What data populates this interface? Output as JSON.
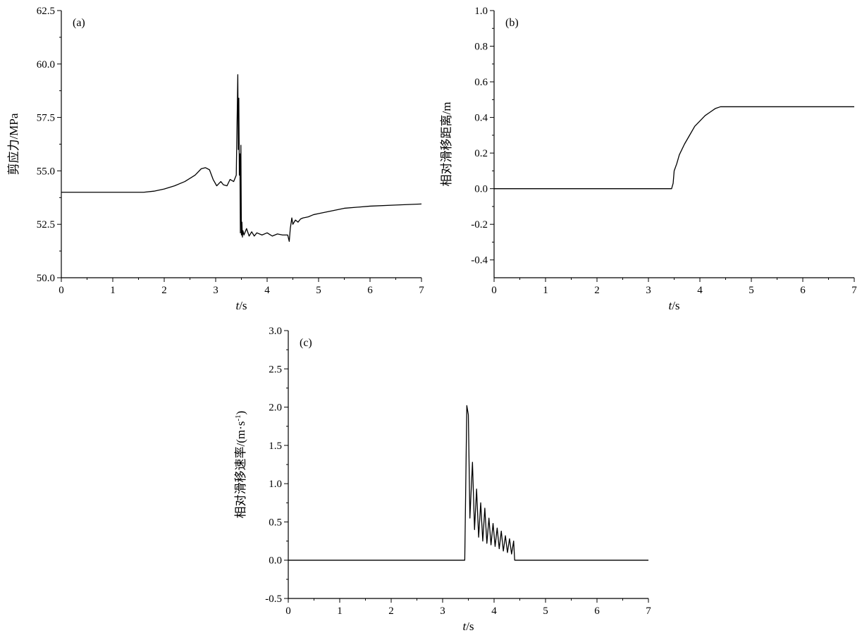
{
  "chart_data": [
    {
      "panel": "(a)",
      "type": "line",
      "xlabel_italic": "t",
      "xlabel_unit": "/s",
      "ylabel": "剪应力/MPa",
      "xlim": [
        0,
        7
      ],
      "ylim": [
        50.0,
        62.5
      ],
      "xticks": [
        "0",
        "1",
        "2",
        "3",
        "4",
        "5",
        "6",
        "7"
      ],
      "yticks": [
        "50.0",
        "52.5",
        "55.0",
        "57.5",
        "60.0",
        "62.5"
      ],
      "series": [
        {
          "x": [
            0,
            1.6,
            1.8,
            2.0,
            2.2,
            2.4,
            2.6,
            2.72,
            2.8,
            2.88,
            2.95,
            3.02,
            3.1,
            3.15,
            3.22,
            3.28,
            3.35,
            3.4,
            3.43,
            3.44,
            3.45,
            3.46,
            3.47,
            3.48,
            3.49,
            3.5,
            3.51,
            3.52,
            3.53,
            3.55,
            3.6,
            3.65,
            3.7,
            3.75,
            3.8,
            3.9,
            4.0,
            4.1,
            4.2,
            4.3,
            4.4,
            4.43,
            4.45,
            4.48,
            4.5,
            4.55,
            4.6,
            4.65,
            4.7,
            4.8,
            4.9,
            5.0,
            5.2,
            5.5,
            6.0,
            6.5,
            7.0
          ],
          "y": [
            54.0,
            54.0,
            54.05,
            54.15,
            54.3,
            54.5,
            54.8,
            55.1,
            55.15,
            55.05,
            54.6,
            54.3,
            54.5,
            54.35,
            54.3,
            54.6,
            54.5,
            54.8,
            59.5,
            56.0,
            58.4,
            54.8,
            55.8,
            52.1,
            56.2,
            52.0,
            52.6,
            51.9,
            52.2,
            52.0,
            52.3,
            51.95,
            52.15,
            51.95,
            52.1,
            52.0,
            52.1,
            51.95,
            52.05,
            52.0,
            52.0,
            51.7,
            52.3,
            52.8,
            52.5,
            52.7,
            52.6,
            52.75,
            52.8,
            52.85,
            52.95,
            53.0,
            53.1,
            53.25,
            53.35,
            53.4,
            53.45
          ]
        }
      ]
    },
    {
      "panel": "(b)",
      "type": "line",
      "xlabel_italic": "t",
      "xlabel_unit": "/s",
      "ylabel": "相对滑移距离/m",
      "xlim": [
        0,
        7
      ],
      "ylim": [
        -0.5,
        1.0
      ],
      "xticks": [
        "0",
        "1",
        "2",
        "3",
        "4",
        "5",
        "6",
        "7"
      ],
      "yticks": [
        "-0.4",
        "-0.2",
        "0.0",
        "0.2",
        "0.4",
        "0.6",
        "0.8",
        "1.0"
      ],
      "series": [
        {
          "x": [
            0,
            3.45,
            3.48,
            3.5,
            3.55,
            3.6,
            3.7,
            3.8,
            3.9,
            4.0,
            4.1,
            4.2,
            4.3,
            4.4,
            7.0
          ],
          "y": [
            0.0,
            0.0,
            0.03,
            0.1,
            0.14,
            0.19,
            0.25,
            0.3,
            0.35,
            0.38,
            0.41,
            0.43,
            0.45,
            0.46,
            0.46
          ]
        }
      ]
    },
    {
      "panel": "(c)",
      "type": "line",
      "xlabel_italic": "t",
      "xlabel_unit": "/s",
      "ylabel": "相对滑移速率/(m·s",
      "ylabel_sup": "-1",
      "ylabel_end": ")",
      "xlim": [
        0,
        7
      ],
      "ylim": [
        -0.5,
        3.0
      ],
      "xticks": [
        "0",
        "1",
        "2",
        "3",
        "4",
        "5",
        "6",
        "7"
      ],
      "yticks": [
        "-0.5",
        "0.0",
        "0.5",
        "1.0",
        "1.5",
        "2.0",
        "2.5",
        "3.0"
      ],
      "series": [
        {
          "x": [
            0,
            3.43,
            3.47,
            3.5,
            3.53,
            3.58,
            3.62,
            3.66,
            3.7,
            3.74,
            3.78,
            3.82,
            3.86,
            3.9,
            3.94,
            3.98,
            4.02,
            4.06,
            4.1,
            4.14,
            4.18,
            4.22,
            4.26,
            4.3,
            4.34,
            4.38,
            4.4,
            4.42,
            7.0
          ],
          "y": [
            0.0,
            0.0,
            2.02,
            1.9,
            0.55,
            1.28,
            0.4,
            0.93,
            0.3,
            0.75,
            0.25,
            0.68,
            0.22,
            0.55,
            0.2,
            0.48,
            0.18,
            0.42,
            0.15,
            0.38,
            0.12,
            0.32,
            0.1,
            0.28,
            0.08,
            0.25,
            0.0,
            0.0,
            0.0
          ]
        }
      ]
    }
  ]
}
